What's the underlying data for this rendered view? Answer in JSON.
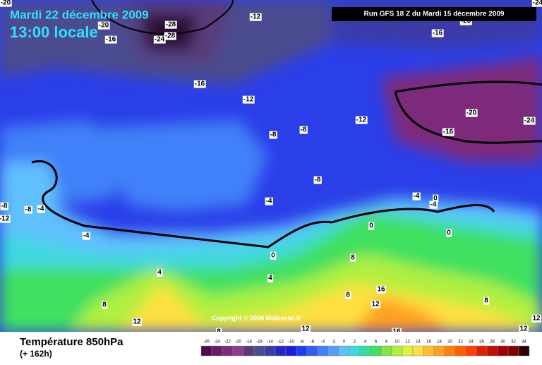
{
  "header": {
    "date": "Mardi 22 décembre 2009",
    "time": "13:00 locale",
    "run": "Run GFS 18 Z du Mardi 15 décembre 2009"
  },
  "map": {
    "copyright": "Copyright © 2008 Meteociel.fr",
    "contour_labels": [
      -20,
      -20,
      -28,
      -28,
      -24,
      -16,
      -12,
      -24,
      -20,
      -16,
      -16,
      -12,
      -20,
      -24,
      -16,
      -12,
      -8,
      -8,
      -8,
      -4,
      0,
      -4,
      -8,
      -8,
      -4,
      -12,
      -4,
      -4,
      0,
      0,
      0,
      4,
      4,
      8,
      8,
      12,
      8,
      16,
      12,
      8,
      12,
      16,
      8,
      12,
      12
    ]
  },
  "footer": {
    "parameter": "Température 850hPa",
    "lead": "(+ 162h)"
  },
  "legend": {
    "ticks": [
      -26,
      -24,
      -22,
      -20,
      -18,
      -16,
      -14,
      -12,
      -10,
      -8,
      -6,
      -4,
      -2,
      0,
      2,
      4,
      6,
      8,
      10,
      12,
      14,
      16,
      18,
      20,
      22,
      24,
      26,
      28,
      30,
      32,
      34
    ],
    "colors": [
      "#4b0d4b",
      "#6a1b6a",
      "#7d2a7d",
      "#8e3a8e",
      "#5a3b7a",
      "#4b4b8f",
      "#3a3aa8",
      "#2626c8",
      "#1a1ae0",
      "#1f3cf0",
      "#2f5cf5",
      "#3f80f8",
      "#50a0fa",
      "#60c0fc",
      "#3fd8e0",
      "#30e0a0",
      "#40e060",
      "#80e840",
      "#b0f040",
      "#e0f040",
      "#ffe040",
      "#ffc030",
      "#ffa020",
      "#ff8010",
      "#ff6000",
      "#ff4000",
      "#e02000",
      "#c01000",
      "#a00000",
      "#800000",
      "#300000"
    ]
  }
}
